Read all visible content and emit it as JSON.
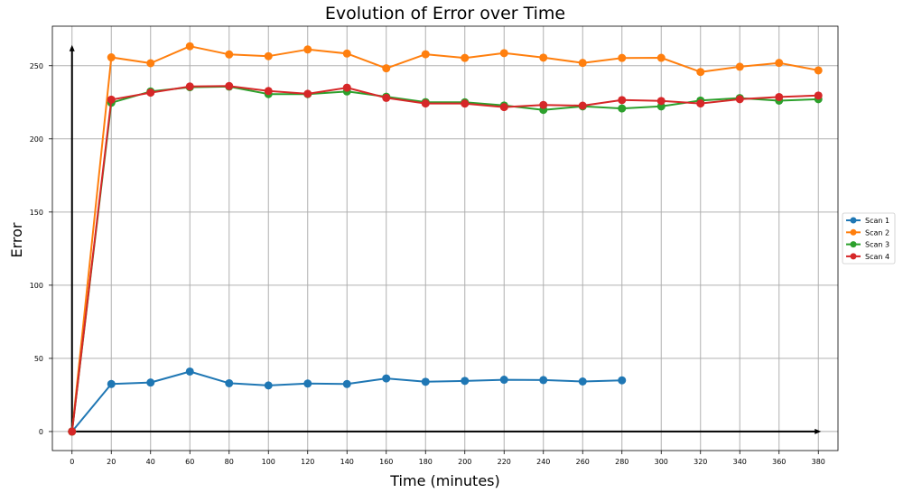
{
  "chart_data": {
    "type": "line",
    "title": "Evolution of Error over Time",
    "xlabel": "Time (minutes)",
    "ylabel": "Error",
    "xlim": [
      -10,
      390
    ],
    "ylim": [
      -13,
      277
    ],
    "xticks": [
      0,
      20,
      40,
      60,
      80,
      100,
      120,
      140,
      160,
      180,
      200,
      220,
      240,
      260,
      280,
      300,
      320,
      340,
      360,
      380
    ],
    "yticks": [
      0,
      50,
      100,
      150,
      200,
      250
    ],
    "grid": true,
    "legend_position": "right",
    "series": [
      {
        "name": "Scan 1",
        "color": "#1f77b4",
        "x": [
          0,
          20,
          40,
          60,
          80,
          100,
          120,
          140,
          160,
          180,
          200,
          220,
          240,
          260,
          280
        ],
        "y": [
          0,
          32.5,
          33.5,
          41,
          33,
          31.5,
          32.8,
          32.5,
          36.3,
          34,
          34.6,
          35.4,
          35.2,
          34.2,
          35
        ]
      },
      {
        "name": "Scan 2",
        "color": "#ff7f0e",
        "x": [
          0,
          20,
          40,
          60,
          80,
          100,
          120,
          140,
          160,
          180,
          200,
          220,
          240,
          260,
          280,
          300,
          320,
          340,
          360,
          380
        ],
        "y": [
          0,
          255.7,
          251.7,
          263.3,
          257.7,
          256.5,
          261.1,
          258.3,
          248.2,
          257.8,
          255.3,
          258.6,
          255.5,
          251.9,
          255.3,
          255.4,
          245.7,
          249.3,
          251.9,
          246.8
        ]
      },
      {
        "name": "Scan 3",
        "color": "#2ca02c",
        "x": [
          0,
          20,
          40,
          60,
          80,
          100,
          120,
          140,
          160,
          180,
          200,
          220,
          240,
          260,
          280,
          300,
          320,
          340,
          360,
          380
        ],
        "y": [
          0,
          224.7,
          232.4,
          235.3,
          235.7,
          230.6,
          230.6,
          232.4,
          228.8,
          225.1,
          225,
          222.8,
          219.8,
          222.2,
          220.8,
          222.2,
          226.2,
          227.9,
          226.1,
          227.1
        ]
      },
      {
        "name": "Scan 4",
        "color": "#d62728",
        "x": [
          0,
          20,
          40,
          60,
          80,
          100,
          120,
          140,
          160,
          180,
          200,
          220,
          240,
          260,
          280,
          300,
          320,
          340,
          360,
          380
        ],
        "y": [
          0,
          226.8,
          231.6,
          235.8,
          236.1,
          232.7,
          230.8,
          235,
          228,
          224.2,
          224.1,
          221.7,
          223.2,
          222.7,
          226.5,
          225.9,
          224.2,
          227.1,
          228.6,
          229.6
        ]
      }
    ]
  }
}
